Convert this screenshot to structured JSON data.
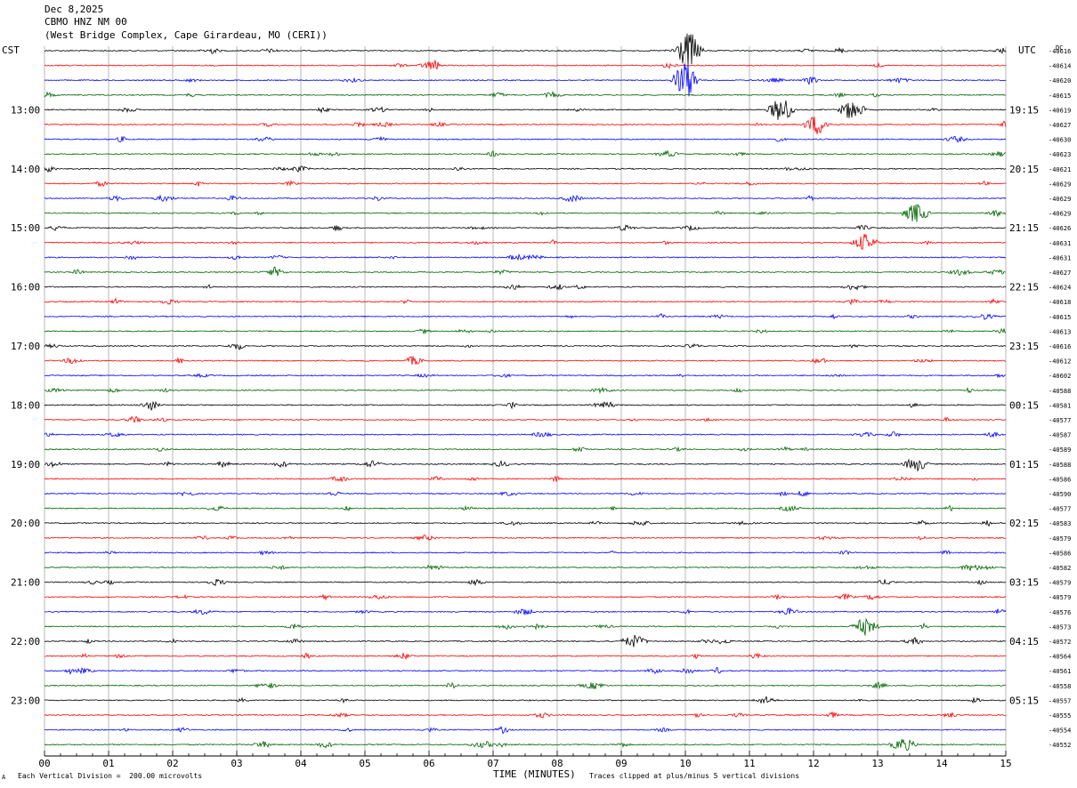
{
  "header": {
    "date": "Dec 8,2025",
    "station": "CBMO HNZ NM 00",
    "location": "(West Bridge Complex, Cape Girardeau, MO (CERI))"
  },
  "axes": {
    "left_tz": "CST",
    "right_tz": "UTC",
    "dc_label": "DC",
    "x_label": "TIME (MINUTES)"
  },
  "footer": {
    "scale": "Each Vertical Division =  200.00 microvolts",
    "clip": "Traces clipped at plus/minus 5 vertical divisions",
    "marker": "A"
  },
  "colors": {
    "trace_cycle": [
      "#000000",
      "#ff0000",
      "#0000ff",
      "#006400"
    ],
    "grid": "#888888"
  },
  "chart_data": {
    "type": "line",
    "subtype": "helicorder",
    "x_ticks": [
      "00",
      "01",
      "02",
      "03",
      "04",
      "05",
      "06",
      "07",
      "08",
      "09",
      "10",
      "11",
      "12",
      "13",
      "14",
      "15"
    ],
    "xlim": [
      0,
      15
    ],
    "row_minutes": 15,
    "left_time_labels": [
      "13:00",
      "14:00",
      "15:00",
      "16:00",
      "17:00",
      "18:00",
      "19:00",
      "20:00",
      "21:00",
      "22:00",
      "23:00"
    ],
    "right_time_labels": [
      "19:15",
      "20:15",
      "21:15",
      "22:15",
      "23:15",
      "00:15",
      "01:15",
      "02:15",
      "03:15",
      "04:15",
      "05:15"
    ],
    "dc_offsets": [
      "-40616",
      "-40614",
      "-40620",
      "-40615",
      "-40619",
      "-40627",
      "-40630",
      "-40623",
      "-40621",
      "-40629",
      "-40629",
      "-40629",
      "-40626",
      "-40631",
      "-40631",
      "-40627",
      "-40624",
      "-40618",
      "-40615",
      "-40613",
      "-40616",
      "-40612",
      "-40602",
      "-40588",
      "-40581",
      "-40577",
      "-40587",
      "-40589",
      "-40588",
      "-40586",
      "-40590",
      "-40577",
      "-40583",
      "-40579",
      "-40586",
      "-40582",
      "-40579",
      "-40579",
      "-40576",
      "-40573",
      "-40572",
      "-40564",
      "-40561",
      "-40558",
      "-40557",
      "-40555",
      "-40554",
      "-40552"
    ],
    "events": [
      {
        "row": 2,
        "minute": 10.0,
        "amp": 6
      },
      {
        "row": 0,
        "minute": 10.05,
        "amp": 6
      },
      {
        "row": 4,
        "minute": 11.5,
        "amp": 4
      },
      {
        "row": 5,
        "minute": 12.05,
        "amp": 3
      },
      {
        "row": 4,
        "minute": 12.6,
        "amp": 3
      },
      {
        "row": 11,
        "minute": 13.6,
        "amp": 3
      },
      {
        "row": 13,
        "minute": 12.8,
        "amp": 2.5
      },
      {
        "row": 39,
        "minute": 12.8,
        "amp": 2.5
      },
      {
        "row": 28,
        "minute": 13.6,
        "amp": 2
      },
      {
        "row": 40,
        "minute": 9.2,
        "amp": 1.8
      },
      {
        "row": 47,
        "minute": 13.4,
        "amp": 2
      }
    ]
  }
}
